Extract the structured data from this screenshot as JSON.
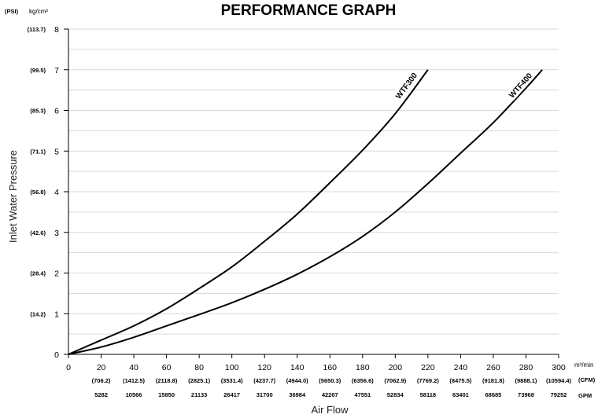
{
  "chart_data": {
    "type": "line",
    "title": "PERFORMANCE GRAPH",
    "xlabel": "Air Flow",
    "ylabel": "Inlet Water Pressure",
    "x_unit": "m³/min",
    "y_unit": "kg/cm²",
    "y_alt_unit": "(PSI)",
    "cfm_unit": "(CFM)",
    "gpm_unit": "GPM",
    "xlim": [
      0,
      300
    ],
    "ylim": [
      0,
      8
    ],
    "x_ticks": [
      "0",
      "20",
      "40",
      "60",
      "80",
      "100",
      "120",
      "140",
      "160",
      "180",
      "200",
      "220",
      "240",
      "260",
      "280",
      "300"
    ],
    "y_ticks": [
      "0",
      "1",
      "2",
      "3",
      "4",
      "5",
      "6",
      "7",
      "8"
    ],
    "psi_ticks": [
      "(14.2)",
      "(28.4)",
      "(42.6)",
      "(56.8)",
      "(71.1)",
      "(85.3)",
      "(99.5)",
      "(113.7)"
    ],
    "cfm_ticks": [
      "(706.2)",
      "(1412.5)",
      "(2118.8)",
      "(2825.1)",
      "(3531.4)",
      "(4237.7)",
      "(4944.0)",
      "(5650.3)",
      "(6356.6)",
      "(7062.9)",
      "(7769.2)",
      "(8475.5)",
      "(9181.8)",
      "(9888.1)",
      "(10594.4)"
    ],
    "gpm_ticks": [
      "5282",
      "10566",
      "15850",
      "21133",
      "26417",
      "31700",
      "36984",
      "42267",
      "47551",
      "52834",
      "58118",
      "63401",
      "68685",
      "73968",
      "79252"
    ],
    "grid": "horizontal minor lines at 0.5 kg/cm²",
    "series": [
      {
        "name": "WTF300",
        "x": [
          0,
          20,
          40,
          60,
          80,
          100,
          120,
          140,
          160,
          180,
          200,
          220
        ],
        "y": [
          0,
          0.35,
          0.7,
          1.12,
          1.62,
          2.15,
          2.78,
          3.45,
          4.22,
          5.02,
          5.92,
          7.0
        ]
      },
      {
        "name": "WTF400",
        "x": [
          0,
          20,
          40,
          60,
          80,
          100,
          120,
          140,
          160,
          180,
          200,
          220,
          240,
          260,
          280,
          290
        ],
        "y": [
          0,
          0.18,
          0.42,
          0.7,
          0.98,
          1.27,
          1.6,
          1.97,
          2.4,
          2.9,
          3.5,
          4.2,
          4.95,
          5.7,
          6.55,
          7.0
        ]
      }
    ]
  }
}
